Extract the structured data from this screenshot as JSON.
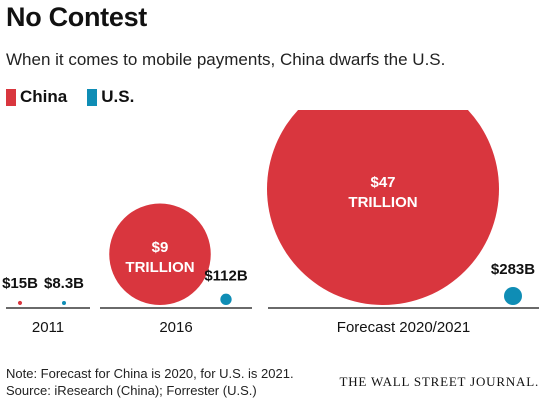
{
  "title": "No Contest",
  "subtitle": "When it comes to mobile payments, China dwarfs the U.S.",
  "notes": [
    "Note: Forecast for China is 2020, for U.S. is 2021.",
    "Source: iResearch (China); Forrester (U.S.)"
  ],
  "masthead": "THE WALL STREET JOURNAL.",
  "colors": {
    "china": "#d9363e",
    "us": "#0f8db5",
    "text_on_bubble": "#ffffff"
  },
  "chart_data": {
    "type": "bubble",
    "unit": "USD",
    "legend": {
      "placement": "top-left",
      "entries": [
        "China",
        "U.S."
      ]
    },
    "categories": [
      "2011",
      "2016",
      "Forecast 2020/2021"
    ],
    "series": [
      {
        "name": "China",
        "values": [
          15000000000,
          9000000000000,
          47000000000000
        ],
        "labels": [
          [
            "$15B"
          ],
          [
            "$9",
            "TRILLION"
          ],
          [
            "$47",
            "TRILLION"
          ]
        ]
      },
      {
        "name": "U.S.",
        "values": [
          8300000000,
          112000000000,
          283000000000
        ],
        "labels": [
          [
            "$8.3B"
          ],
          [
            "$112B"
          ],
          [
            "$283B"
          ]
        ]
      }
    ]
  }
}
